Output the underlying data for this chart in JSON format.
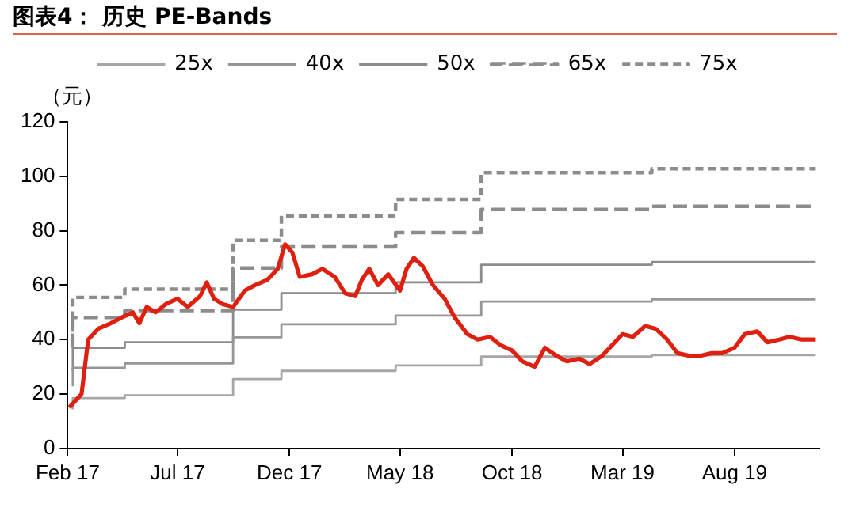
{
  "chart_data": {
    "type": "line",
    "title": "图表4： 历史 PE-Bands",
    "ylabel": "（元）",
    "xlim": [
      "2017-02-01",
      "2019-11-25"
    ],
    "xticks": [
      {
        "value": "2017-02-01",
        "label": "Feb 17"
      },
      {
        "value": "2017-07-01",
        "label": "Jul 17"
      },
      {
        "value": "2017-12-01",
        "label": "Dec 17"
      },
      {
        "value": "2018-05-01",
        "label": "May 18"
      },
      {
        "value": "2018-10-01",
        "label": "Oct 18"
      },
      {
        "value": "2019-03-01",
        "label": "Mar 19"
      },
      {
        "value": "2019-08-01",
        "label": "Aug 19"
      }
    ],
    "ylim": [
      0,
      120
    ],
    "yticks": [
      0,
      20,
      40,
      60,
      80,
      100,
      120
    ],
    "grid": false,
    "legend": "top",
    "marker": "none",
    "series": [
      {
        "color": "#e0200f",
        "line_style": "solid",
        "x": [
          "2017-02-03",
          "2017-02-20",
          "2017-03-01",
          "2017-03-15",
          "2017-04-01",
          "2017-04-15",
          "2017-05-01",
          "2017-05-10",
          "2017-05-20",
          "2017-06-01",
          "2017-06-15",
          "2017-07-01",
          "2017-07-15",
          "2017-08-01",
          "2017-08-10",
          "2017-08-20",
          "2017-09-01",
          "2017-09-15",
          "2017-10-01",
          "2017-10-15",
          "2017-11-01",
          "2017-11-15",
          "2017-11-25",
          "2017-12-05",
          "2017-12-15",
          "2018-01-01",
          "2018-01-15",
          "2018-02-01",
          "2018-02-15",
          "2018-03-01",
          "2018-03-10",
          "2018-03-20",
          "2018-04-01",
          "2018-04-15",
          "2018-05-01",
          "2018-05-10",
          "2018-05-20",
          "2018-06-01",
          "2018-06-15",
          "2018-07-01",
          "2018-07-15",
          "2018-08-01",
          "2018-08-15",
          "2018-09-01",
          "2018-09-15",
          "2018-10-01",
          "2018-10-15",
          "2018-11-01",
          "2018-11-15",
          "2018-12-01",
          "2018-12-15",
          "2019-01-01",
          "2019-01-15",
          "2019-02-01",
          "2019-02-15",
          "2019-03-01",
          "2019-03-15",
          "2019-04-01",
          "2019-04-15",
          "2019-05-01",
          "2019-05-15",
          "2019-06-01",
          "2019-06-15",
          "2019-07-01",
          "2019-07-15",
          "2019-08-01",
          "2019-08-15",
          "2019-09-01",
          "2019-09-15",
          "2019-10-01",
          "2019-10-15",
          "2019-11-01",
          "2019-11-20"
        ],
        "values": [
          15,
          20,
          40,
          44,
          46,
          48,
          50,
          46,
          52,
          50,
          53,
          55,
          52,
          56,
          61,
          55,
          53,
          52,
          58,
          60,
          62,
          66,
          75,
          72,
          63,
          64,
          66,
          63,
          57,
          56,
          62,
          66,
          60,
          64,
          58,
          66,
          70,
          67,
          60,
          55,
          48,
          42,
          40,
          41,
          38,
          36,
          32,
          30,
          37,
          34,
          32,
          33,
          31,
          34,
          38,
          42,
          41,
          45,
          44,
          40,
          35,
          34,
          34,
          35,
          35,
          37,
          42,
          43,
          39,
          40,
          41,
          40,
          40
        ]
      },
      {
        "type": "step",
        "name": "25x",
        "color": "#a6a6a6",
        "line_style": "solid",
        "x": [
          "2017-02-08",
          "2017-04-20",
          "2017-09-15",
          "2017-11-20",
          "2018-04-25",
          "2018-08-20",
          "2019-04-10",
          "2019-09-20",
          "2019-11-20"
        ],
        "values": [
          14.3,
          18.5,
          19.5,
          25.5,
          28.5,
          30.5,
          33.8,
          34.3,
          34.3
        ]
      },
      {
        "type": "step",
        "name": "40x",
        "color": "#969696",
        "line_style": "solid",
        "x": [
          "2017-02-08",
          "2017-04-20",
          "2017-09-15",
          "2017-11-20",
          "2018-04-25",
          "2018-08-20",
          "2019-04-10",
          "2019-09-20",
          "2019-11-20"
        ],
        "values": [
          22.8,
          29.6,
          31.2,
          40.8,
          45.6,
          48.8,
          54,
          54.8,
          54.8
        ]
      },
      {
        "type": "step",
        "name": "50x",
        "color": "#8c8c8c",
        "line_style": "solid",
        "x": [
          "2017-02-08",
          "2017-04-20",
          "2017-09-15",
          "2017-11-20",
          "2018-04-25",
          "2018-08-20",
          "2019-04-10",
          "2019-09-20",
          "2019-11-20"
        ],
        "values": [
          28.5,
          37,
          39,
          51,
          57,
          61,
          67.5,
          68.5,
          68.5
        ]
      },
      {
        "type": "step",
        "name": "65x",
        "color": "#8c8c8c",
        "line_style": "dashed",
        "x": [
          "2017-02-08",
          "2017-04-20",
          "2017-09-15",
          "2017-11-20",
          "2018-04-25",
          "2018-08-20",
          "2019-04-10",
          "2019-09-20",
          "2019-11-20"
        ],
        "values": [
          37,
          48.1,
          50.7,
          66.3,
          74.1,
          79.3,
          87.8,
          89,
          89
        ]
      },
      {
        "type": "step",
        "name": "75x",
        "color": "#8c8c8c",
        "line_style": "dotted",
        "x": [
          "2017-02-08",
          "2017-04-20",
          "2017-09-15",
          "2017-11-20",
          "2018-04-25",
          "2018-08-20",
          "2019-04-10",
          "2019-09-20",
          "2019-11-20"
        ],
        "values": [
          42.8,
          55.5,
          58.5,
          76.5,
          85.5,
          91.5,
          101.3,
          102.8,
          102.8
        ]
      }
    ]
  }
}
